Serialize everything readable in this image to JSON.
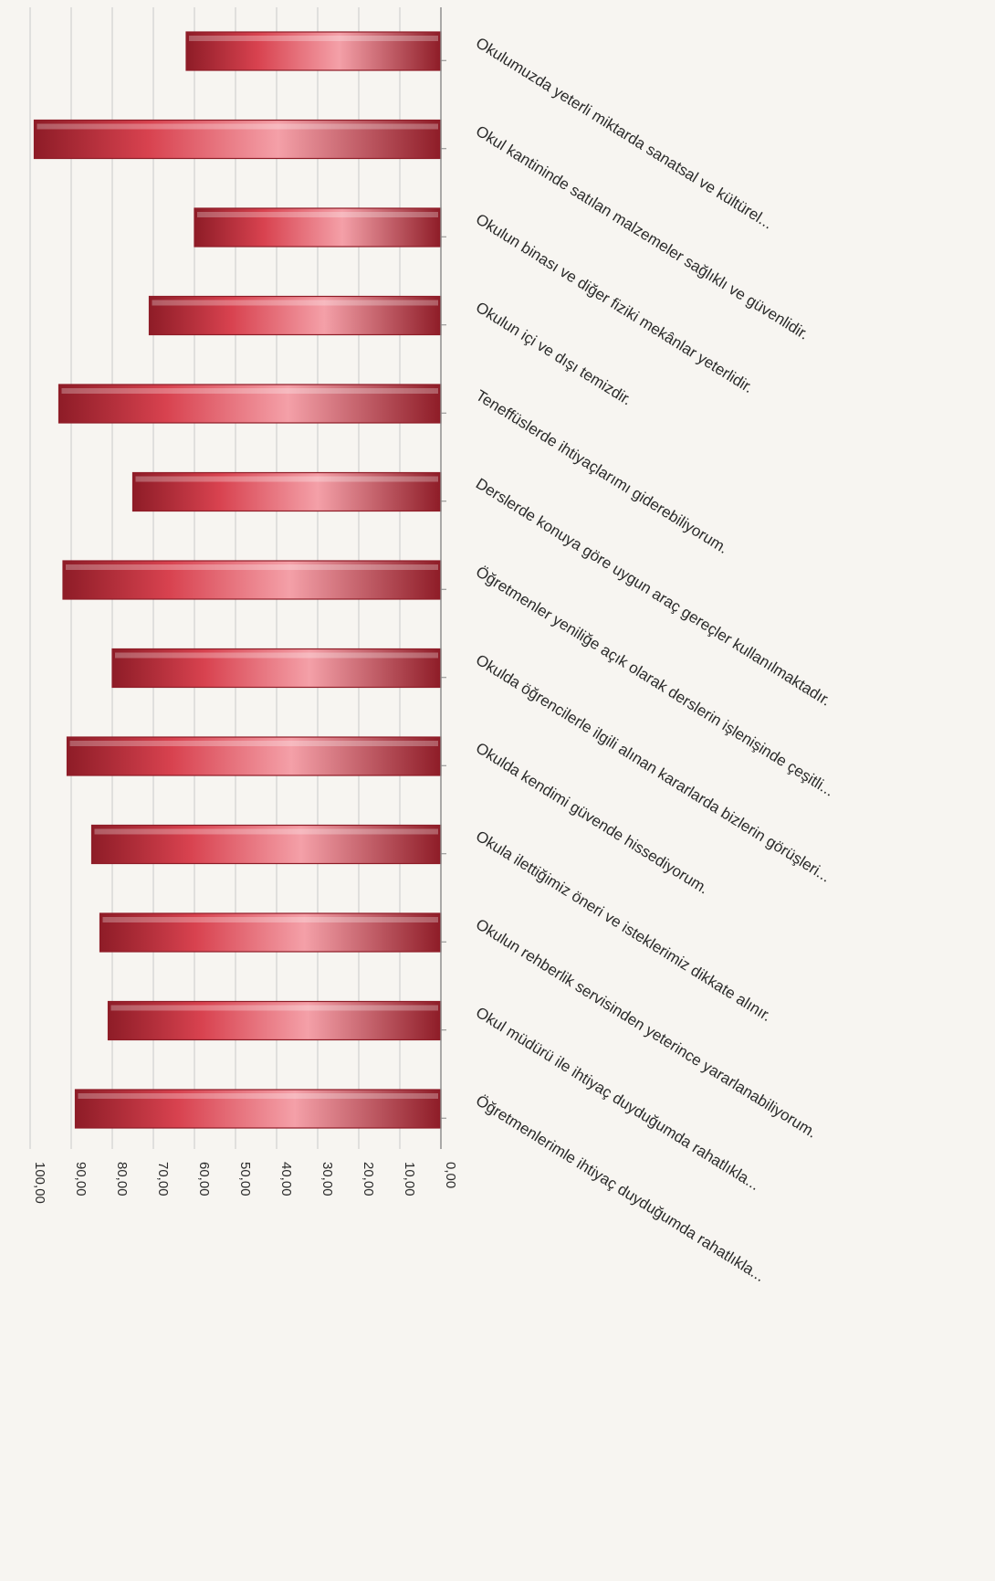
{
  "chart_data": {
    "type": "bar",
    "orientation": "horizontal",
    "rotation": "rotated 90° clockwise on the page; value axis runs along the bottom edge, categories along the right edge",
    "grid": true,
    "legend": "none",
    "title": "",
    "xlabel": "",
    "ylabel": "",
    "ylim": [
      0,
      100
    ],
    "ticks": [
      "0,00",
      "10,00",
      "20,00",
      "30,00",
      "40,00",
      "50,00",
      "60,00",
      "70,00",
      "80,00",
      "90,00",
      "100,00"
    ],
    "colors": {
      "bar": "#d8424f",
      "bar_highlight": "#f4a0a8",
      "bar_shadow": "#8e1c27",
      "grid": "#c9c9c9",
      "axis": "#888888",
      "text": "#2a2a2a"
    },
    "categories": [
      "Okulumuzda yeterli miktarda sanatsal ve kültürel...",
      "Okul kantininde satılan malzemeler sağlıklı ve güvenlidir.",
      "Okulun binası ve diğer fiziki mekânlar yeterlidir.",
      "Okulun içi ve dışı temizdir.",
      "Teneffüslerde ihtiyaçlarımı giderebiliyorum.",
      "Derslerde konuya göre uygun araç gereçler kullanılmaktadır.",
      "Öğretmenler yeniliğe açık olarak derslerin işlenişinde çeşitli...",
      "Okulda öğrencilerle ilgili alınan kararlarda bizlerin görüşleri...",
      "Okulda kendimi güvende hissediyorum.",
      "Okula ilettiğimiz öneri ve isteklerimiz dikkate alınır.",
      "Okulun rehberlik servisinden yeterince yararlanabiliyorum.",
      "Okul müdürü ile ihtiyaç duyduğumda rahatlıkla...",
      "Öğretmenlerimle ihtiyaç duyduğumda rahatlıkla..."
    ],
    "values": [
      62,
      99,
      60,
      71,
      93,
      75,
      92,
      80,
      91,
      85,
      83,
      81,
      89
    ]
  }
}
